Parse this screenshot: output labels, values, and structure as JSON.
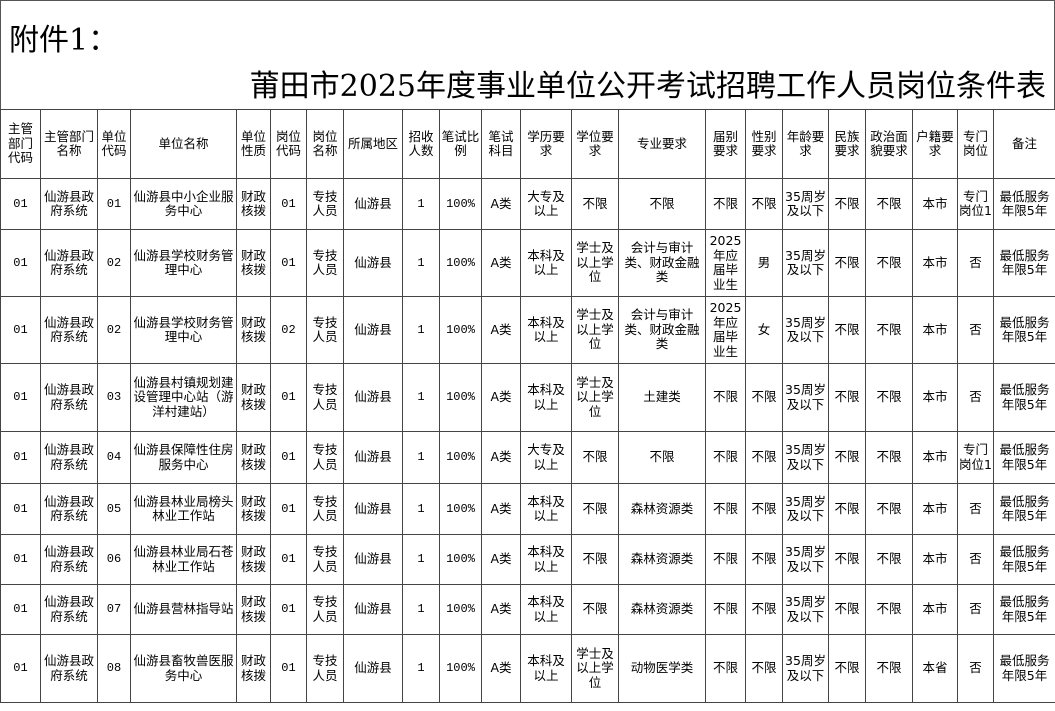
{
  "attachment_label": "附件1：",
  "title": "莆田市2025年度事业单位公开考试招聘工作人员岗位条件表",
  "headers": [
    "主管部门代码",
    "主管部门名称",
    "单位代码",
    "单位名称",
    "单位性质",
    "岗位代码",
    "岗位名称",
    "所属地区",
    "招收人数",
    "笔试比例",
    "笔试科目",
    "学历要求",
    "学位要求",
    "专业要求",
    "届别要求",
    "性别要求",
    "年龄要求",
    "民族要求",
    "政治面貌要求",
    "户籍要求",
    "专门岗位",
    "备注"
  ],
  "rows": [
    [
      "01",
      "仙游县政府系统",
      "01",
      "仙游县中小企业服务中心",
      "财政核拨",
      "01",
      "专技人员",
      "仙游县",
      "1",
      "100%",
      "A类",
      "大专及以上",
      "不限",
      "不限",
      "不限",
      "不限",
      "35周岁及以下",
      "不限",
      "不限",
      "本市",
      "专门岗位1",
      "最低服务年限5年"
    ],
    [
      "01",
      "仙游县政府系统",
      "02",
      "仙游县学校财务管理中心",
      "财政核拨",
      "01",
      "专技人员",
      "仙游县",
      "1",
      "100%",
      "A类",
      "本科及以上",
      "学士及以上学位",
      "会计与审计类、财政金融类",
      "2025年应届毕业生",
      "男",
      "35周岁及以下",
      "不限",
      "不限",
      "本市",
      "否",
      "最低服务年限5年"
    ],
    [
      "01",
      "仙游县政府系统",
      "02",
      "仙游县学校财务管理中心",
      "财政核拨",
      "02",
      "专技人员",
      "仙游县",
      "1",
      "100%",
      "A类",
      "本科及以上",
      "学士及以上学位",
      "会计与审计类、财政金融类",
      "2025年应届毕业生",
      "女",
      "35周岁及以下",
      "不限",
      "不限",
      "本市",
      "否",
      "最低服务年限5年"
    ],
    [
      "01",
      "仙游县政府系统",
      "03",
      "仙游县村镇规划建设管理中心站（游洋村建站）",
      "财政核拨",
      "01",
      "专技人员",
      "仙游县",
      "1",
      "100%",
      "A类",
      "本科及以上",
      "学士及以上学位",
      "土建类",
      "不限",
      "不限",
      "35周岁及以下",
      "不限",
      "不限",
      "本市",
      "否",
      "最低服务年限5年"
    ],
    [
      "01",
      "仙游县政府系统",
      "04",
      "仙游县保障性住房服务中心",
      "财政核拨",
      "01",
      "专技人员",
      "仙游县",
      "1",
      "100%",
      "A类",
      "大专及以上",
      "不限",
      "不限",
      "不限",
      "不限",
      "35周岁及以下",
      "不限",
      "不限",
      "本市",
      "专门岗位1",
      "最低服务年限5年"
    ],
    [
      "01",
      "仙游县政府系统",
      "05",
      "仙游县林业局榜头林业工作站",
      "财政核拨",
      "01",
      "专技人员",
      "仙游县",
      "1",
      "100%",
      "A类",
      "本科及以上",
      "不限",
      "森林资源类",
      "不限",
      "不限",
      "35周岁及以下",
      "不限",
      "不限",
      "本市",
      "否",
      "最低服务年限5年"
    ],
    [
      "01",
      "仙游县政府系统",
      "06",
      "仙游县林业局石苍林业工作站",
      "财政核拨",
      "01",
      "专技人员",
      "仙游县",
      "1",
      "100%",
      "A类",
      "本科及以上",
      "不限",
      "森林资源类",
      "不限",
      "不限",
      "35周岁及以下",
      "不限",
      "不限",
      "本市",
      "否",
      "最低服务年限5年"
    ],
    [
      "01",
      "仙游县政府系统",
      "07",
      "仙游县营林指导站",
      "财政核拨",
      "01",
      "专技人员",
      "仙游县",
      "1",
      "100%",
      "A类",
      "本科及以上",
      "不限",
      "森林资源类",
      "不限",
      "不限",
      "35周岁及以下",
      "不限",
      "不限",
      "本市",
      "否",
      "最低服务年限5年"
    ],
    [
      "01",
      "仙游县政府系统",
      "08",
      "仙游县畜牧兽医服务中心",
      "财政核拨",
      "01",
      "专技人员",
      "仙游县",
      "1",
      "100%",
      "A类",
      "本科及以上",
      "学士及以上学位",
      "动物医学类",
      "不限",
      "不限",
      "35周岁及以下",
      "不限",
      "不限",
      "本省",
      "否",
      "最低服务年限5年"
    ]
  ]
}
